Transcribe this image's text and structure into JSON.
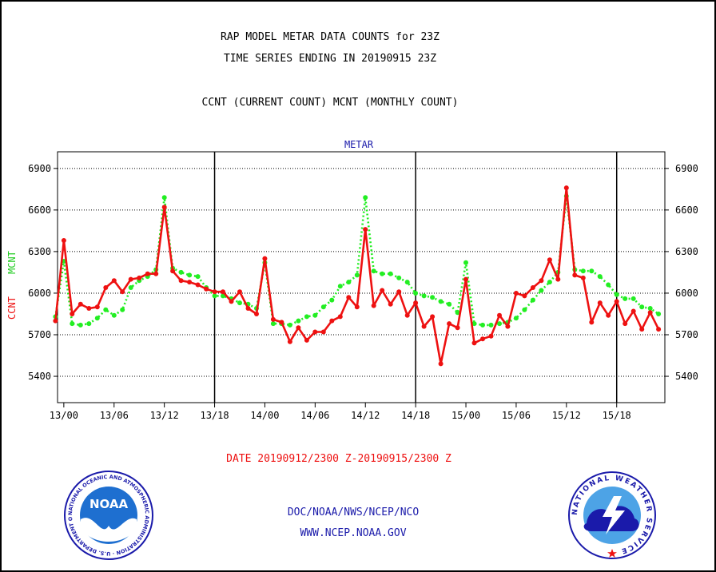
{
  "header": {
    "title_line1": "RAP MODEL METAR DATA COUNTS for 23Z",
    "title_line2": "TIME SERIES ENDING IN 20190915 23Z",
    "subtitle": "CCNT (CURRENT COUNT) MCNT (MONTHLY COUNT)"
  },
  "footer": {
    "date_range": "DATE 20190912/2300 Z-20190915/2300 Z",
    "org": "DOC/NOAA/NWS/NCEP/NCO",
    "url": "WWW.NCEP.NOAA.GOV"
  },
  "logos": {
    "noaa_text": "NOAA",
    "noaa_ring": "NATIONAL OCEANIC AND ATMOSPHERIC ADMINISTRATION · U.S. DEPARTMENT OF COMMERCE ·",
    "nws_ring": "NATIONAL WEATHER SERVICE"
  },
  "colors": {
    "ccnt": "#ee1111",
    "mcnt": "#22ee22",
    "text_blue": "#1a1aaa",
    "text_red": "#ee1111"
  },
  "chart_data": {
    "type": "line",
    "title": "METAR",
    "ylabel": [
      "CCNT",
      "MCNT"
    ],
    "ylim": [
      5210,
      7020
    ],
    "xlim": [
      -0.75,
      71.75
    ],
    "yticks": [
      5400,
      5700,
      6000,
      6300,
      6600,
      6900
    ],
    "xticks": [
      {
        "x": 0,
        "label": "13/00"
      },
      {
        "x": 6,
        "label": "13/06"
      },
      {
        "x": 12,
        "label": "13/12"
      },
      {
        "x": 18,
        "label": "13/18"
      },
      {
        "x": 24,
        "label": "14/00"
      },
      {
        "x": 30,
        "label": "14/06"
      },
      {
        "x": 36,
        "label": "14/12"
      },
      {
        "x": 42,
        "label": "14/18"
      },
      {
        "x": 48,
        "label": "15/00"
      },
      {
        "x": 54,
        "label": "15/06"
      },
      {
        "x": 60,
        "label": "15/12"
      },
      {
        "x": 66,
        "label": "15/18"
      }
    ],
    "vertical_lines": [
      18,
      42,
      66
    ],
    "grid": true,
    "x_start": -1,
    "series": [
      {
        "name": "CCNT",
        "color": "#ee1111",
        "values": [
          5800,
          6380,
          5850,
          5920,
          5890,
          5900,
          6040,
          6090,
          6010,
          6100,
          6110,
          6140,
          6140,
          6620,
          6160,
          6090,
          6080,
          6060,
          6030,
          6010,
          6010,
          5940,
          6010,
          5890,
          5850,
          6250,
          5810,
          5790,
          5650,
          5750,
          5660,
          5720,
          5720,
          5800,
          5830,
          5970,
          5900,
          6460,
          5910,
          6020,
          5920,
          6010,
          5840,
          5930,
          5760,
          5830,
          5490,
          5780,
          5750,
          6100,
          5640,
          5670,
          5690,
          5840,
          5760,
          6000,
          5980,
          6040,
          6090,
          6240,
          6100,
          6760,
          6130,
          6110,
          5790,
          5930,
          5840,
          5940,
          5780,
          5870,
          5740,
          5860,
          5740
        ]
      },
      {
        "name": "MCNT",
        "color": "#22ee22",
        "values": [
          5830,
          6230,
          5780,
          5770,
          5780,
          5820,
          5880,
          5840,
          5880,
          6040,
          6090,
          6120,
          6170,
          6690,
          6180,
          6150,
          6130,
          6120,
          6040,
          5980,
          5980,
          5960,
          5930,
          5920,
          5890,
          6220,
          5780,
          5780,
          5770,
          5800,
          5830,
          5840,
          5900,
          5950,
          6050,
          6080,
          6130,
          6690,
          6160,
          6140,
          6140,
          6110,
          6080,
          6000,
          5980,
          5970,
          5940,
          5920,
          5860,
          6220,
          5780,
          5770,
          5770,
          5780,
          5790,
          5820,
          5880,
          5950,
          6020,
          6080,
          6150,
          6700,
          6170,
          6160,
          6160,
          6120,
          6060,
          5990,
          5960,
          5960,
          5900,
          5890,
          5850
        ]
      }
    ]
  }
}
